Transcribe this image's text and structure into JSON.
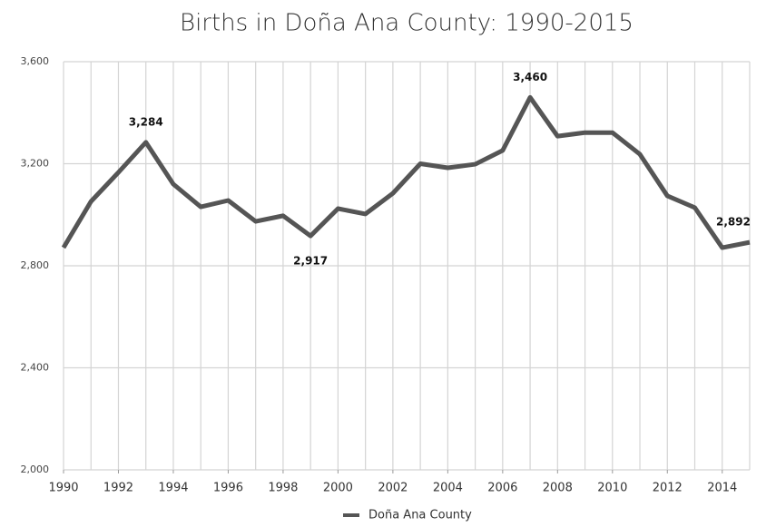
{
  "chart_data": {
    "type": "line",
    "title": "Births in Doña Ana County: 1990-2015",
    "x": [
      1990,
      1991,
      1992,
      1993,
      1994,
      1995,
      1996,
      1997,
      1998,
      1999,
      2000,
      2001,
      2002,
      2003,
      2004,
      2005,
      2006,
      2007,
      2008,
      2009,
      2010,
      2011,
      2012,
      2013,
      2014,
      2015
    ],
    "series": [
      {
        "name": "Doña Ana County",
        "color": "#555555",
        "values": [
          2871,
          3052,
          3166,
          3284,
          3120,
          3031,
          3056,
          2974,
          2996,
          2917,
          3024,
          3003,
          3084,
          3200,
          3184,
          3198,
          3252,
          3460,
          3308,
          3322,
          3322,
          3237,
          3074,
          3028,
          2871,
          2892
        ],
        "value_labels": [
          null,
          null,
          null,
          "3,284",
          null,
          null,
          null,
          null,
          null,
          "2,917",
          null,
          null,
          null,
          null,
          null,
          null,
          null,
          "3,460",
          null,
          null,
          null,
          null,
          null,
          null,
          null,
          "2,892"
        ]
      }
    ],
    "xlim": [
      1990,
      2015
    ],
    "xticks": [
      1990,
      1992,
      1994,
      1996,
      1998,
      2000,
      2002,
      2004,
      2006,
      2008,
      2010,
      2012,
      2014
    ],
    "ylim": [
      2000,
      3600
    ],
    "yticks": [
      {
        "value": 2000,
        "label": "2,000"
      },
      {
        "value": 2400,
        "label": "2,400"
      },
      {
        "value": 2800,
        "label": "2,800"
      },
      {
        "value": 3200,
        "label": "3,200"
      },
      {
        "value": 3600,
        "label": "3,600"
      }
    ],
    "grid": true,
    "legend": "bottom"
  }
}
